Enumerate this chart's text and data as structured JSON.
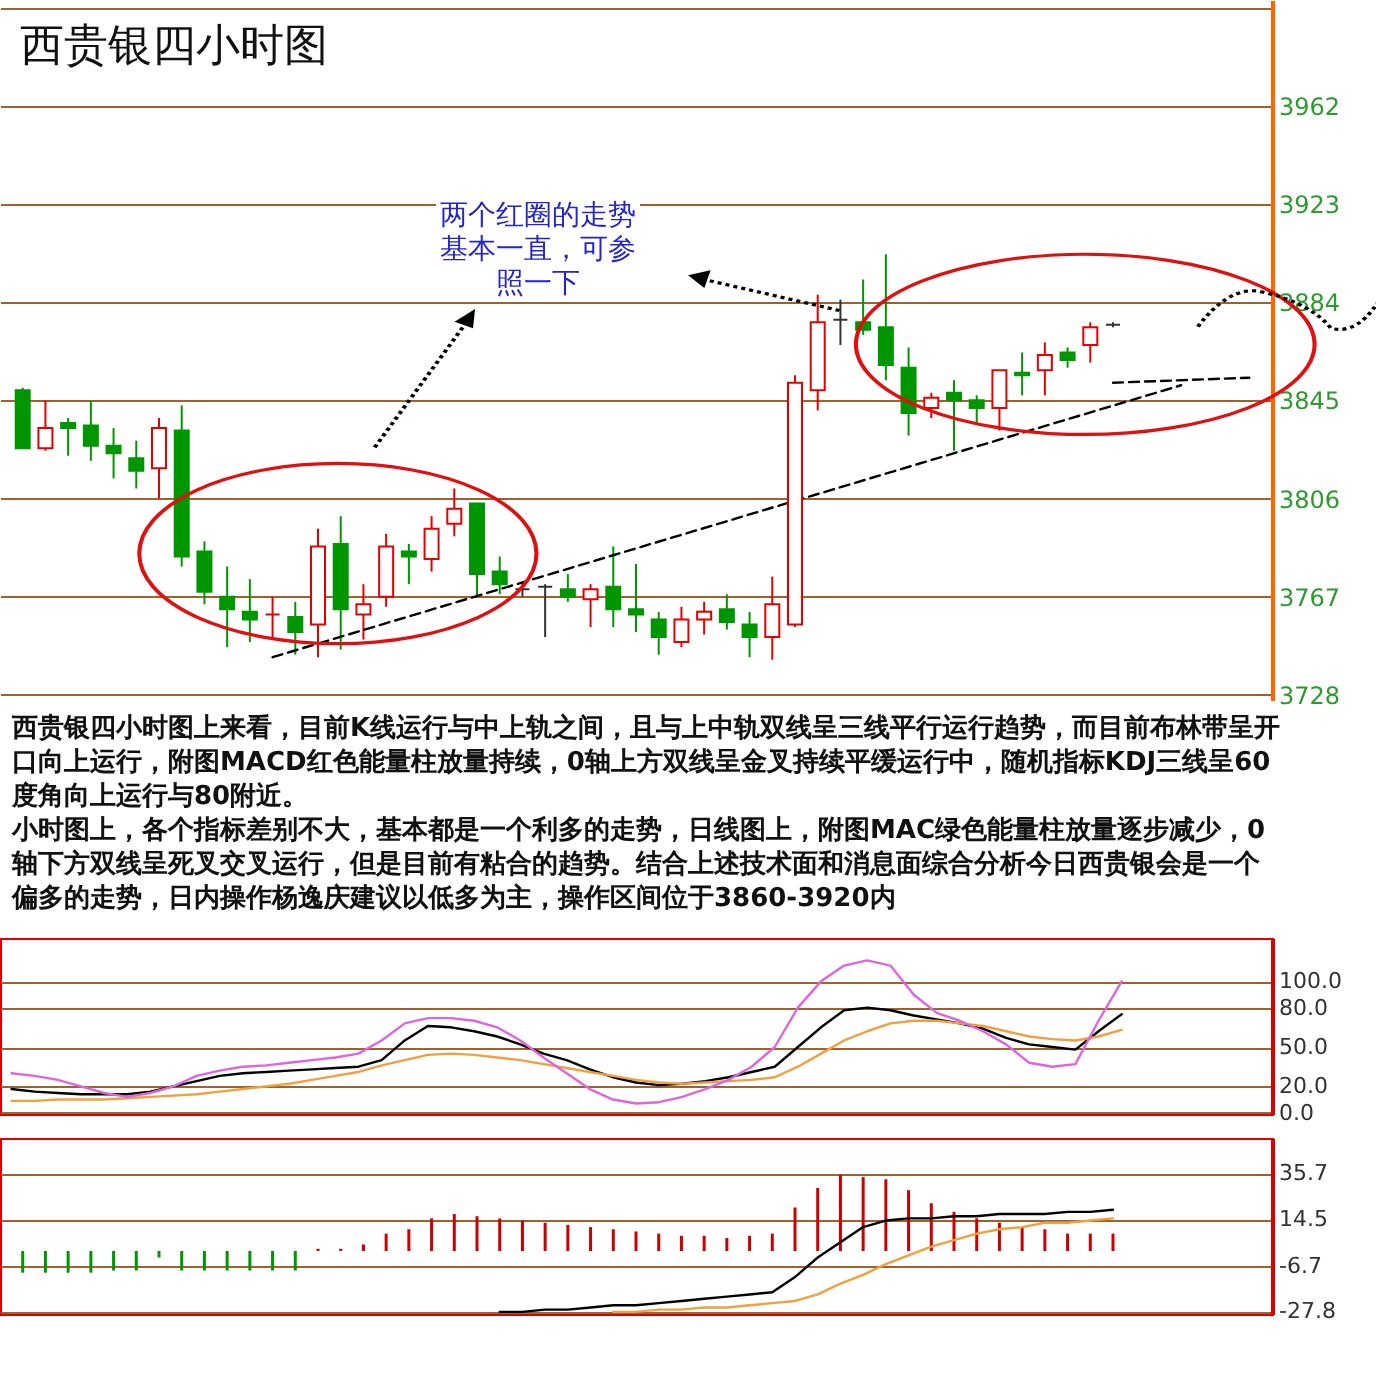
{
  "chart_data": [
    {
      "type": "candlestick",
      "title": "西贵银四小时图",
      "annotations": [
        "两个红圈的走势基本一直，可参照一下",
        "西贵银四小时图上来看，目前K线运行与中上轨之间，且与上中轨双线呈三线平行运行趋势，而目前布林带呈开口向上运行，附图MACD红色能量柱放量持续，0轴上方双线呈金叉持续平缓运行中，随机指标KDJ三线呈60度角向上运行与80附近。",
        "小时图上，各个指标差别不大，基本都是一个利多的走势，日线图上，附图MAC绿色能量柱放量逐步减少，0轴下方双线呈死叉交叉运行，但是目前有粘合的趋势。结合上述技术面和消息面综合分析今日西贵银会是一个偏多的走势，日内操作杨逸庆建议以低多为主，操作区间位于3860-3920内"
      ],
      "categories": [
        null,
        null,
        null,
        null,
        null,
        null,
        null,
        null,
        null,
        null,
        null,
        null,
        null,
        null,
        null,
        null,
        null,
        null,
        null,
        null,
        null,
        null,
        null,
        null,
        null,
        null,
        null,
        null,
        null,
        null,
        null,
        null,
        null,
        null,
        null,
        null,
        null,
        null,
        null,
        null,
        null,
        null,
        null,
        null,
        null,
        null,
        null,
        null,
        null,
        null,
        null,
        null,
        null,
        null,
        null
      ],
      "ohlc": [
        [
          3849,
          3850,
          3826,
          3826
        ],
        [
          3826,
          3845,
          3825,
          3834
        ],
        [
          3836,
          3838,
          3823,
          3834
        ],
        [
          3835,
          3845,
          3821,
          3827
        ],
        [
          3827,
          3834,
          3814,
          3824
        ],
        [
          3822,
          3829,
          3810,
          3817
        ],
        [
          3818,
          3838,
          3806,
          3834
        ],
        [
          3833,
          3843,
          3779,
          3783
        ],
        [
          3785,
          3789,
          3764,
          3769
        ],
        [
          3767,
          3779,
          3747,
          3762
        ],
        [
          3761,
          3774,
          3749,
          3758
        ],
        [
          3760,
          3767,
          3750,
          3760
        ],
        [
          3759,
          3765,
          3744,
          3753
        ],
        [
          3756,
          3794,
          3743,
          3787
        ],
        [
          3788,
          3799,
          3746,
          3762
        ],
        [
          3760,
          3772,
          3750,
          3764
        ],
        [
          3767,
          3792,
          3763,
          3787
        ],
        [
          3785,
          3788,
          3772,
          3783
        ],
        [
          3782,
          3799,
          3777,
          3794
        ],
        [
          3796,
          3810,
          3791,
          3802
        ],
        [
          3804,
          3804,
          3767,
          3776
        ],
        [
          3777,
          3783,
          3768,
          3772
        ],
        [
          3770,
          3773,
          3767,
          3770
        ],
        [
          3771,
          3772,
          3751,
          3771
        ],
        [
          3770,
          3776,
          3765,
          3767
        ],
        [
          3766,
          3772,
          3755,
          3770
        ],
        [
          3771,
          3787,
          3755,
          3762
        ],
        [
          3762,
          3780,
          3753,
          3760
        ],
        [
          3758,
          3761,
          3744,
          3751
        ],
        [
          3749,
          3763,
          3747,
          3758
        ],
        [
          3758,
          3765,
          3752,
          3761
        ],
        [
          3762,
          3768,
          3754,
          3757
        ],
        [
          3756,
          3761,
          3743,
          3751
        ],
        [
          3751,
          3775,
          3742,
          3764
        ],
        [
          3756,
          3855,
          3755,
          3852
        ],
        [
          3849,
          3887,
          3841,
          3876
        ],
        [
          3877,
          3885,
          3867,
          3877
        ],
        [
          3876,
          3893,
          3871,
          3873
        ],
        [
          3874,
          3903,
          3853,
          3859
        ],
        [
          3858,
          3866,
          3831,
          3840
        ],
        [
          3842,
          3848,
          3838,
          3846
        ],
        [
          3848,
          3853,
          3825,
          3845
        ],
        [
          3845,
          3847,
          3836,
          3842
        ],
        [
          3842,
          3857,
          3833,
          3857
        ],
        [
          3856,
          3864,
          3847,
          3855
        ],
        [
          3857,
          3868,
          3847,
          3863
        ],
        [
          3864,
          3866,
          3858,
          3861
        ],
        [
          3867,
          3876,
          3860,
          3874
        ],
        [
          3875,
          3876,
          3874,
          3875
        ],
        null,
        null,
        null,
        null,
        null,
        null
      ],
      "colors": [
        "#009600",
        "#e60000",
        "#009600",
        "#009600",
        "#009600",
        "#009600",
        "#e60000",
        "#009600",
        "#009600",
        "#009600",
        "#009600",
        "#e60000",
        "#009600",
        "#e60000",
        "#009600",
        "#e60000",
        "#e60000",
        "#009600",
        "#e60000",
        "#e60000",
        "#009600",
        "#009600",
        "#333333",
        "#333333",
        "#009600",
        "#e60000",
        "#009600",
        "#009600",
        "#009600",
        "#e60000",
        "#e60000",
        "#009600",
        "#009600",
        "#e60000",
        "#e60000",
        "#e60000",
        "#333333",
        "#009600",
        "#009600",
        "#009600",
        "#e60000",
        "#009600",
        "#009600",
        "#e60000",
        "#009600",
        "#e60000",
        "#009600",
        "#e60000",
        "#333333",
        null,
        null,
        null,
        null,
        null,
        null
      ],
      "series": [
        {
          "type": "line",
          "color": "#000000",
          "line_style": "dashed",
          "values": [
            null,
            null,
            null,
            null,
            null,
            null,
            null,
            null,
            null,
            null,
            null,
            3743,
            null,
            null,
            null,
            null,
            null,
            null,
            null,
            null,
            null,
            null,
            null,
            null,
            null,
            null,
            null,
            null,
            null,
            null,
            null,
            null,
            null,
            null,
            null,
            null,
            null,
            null,
            null,
            null,
            null,
            null,
            null,
            null,
            null,
            null,
            null,
            null,
            null,
            null,
            null,
            3851,
            null,
            null,
            null
          ]
        },
        {
          "type": "line",
          "color": "#000000",
          "line_style": "dashed",
          "values": [
            null,
            null,
            null,
            null,
            null,
            null,
            null,
            null,
            null,
            null,
            null,
            null,
            null,
            null,
            null,
            null,
            null,
            null,
            null,
            null,
            null,
            null,
            null,
            null,
            null,
            null,
            null,
            null,
            null,
            null,
            null,
            null,
            null,
            null,
            null,
            null,
            null,
            null,
            null,
            null,
            null,
            null,
            null,
            null,
            null,
            null,
            null,
            null,
            3852,
            null,
            null,
            null,
            null,
            null,
            3854
          ]
        }
      ],
      "ylim": [
        3726,
        4004
      ],
      "yticks": [
        3728,
        3767,
        3806,
        3845,
        3884,
        3923,
        3962,
        {
          "value": 4001,
          "label": null
        }
      ],
      "grid": "y",
      "tick_labels": "y"
    },
    {
      "type": "line",
      "categories": [
        null,
        null,
        null,
        null,
        null,
        null,
        null,
        null,
        null,
        null,
        null,
        null,
        null,
        null,
        null,
        null,
        null,
        null,
        null,
        null,
        null,
        null,
        null,
        null,
        null,
        null,
        null,
        null,
        null,
        null,
        null,
        null,
        null,
        null,
        null,
        null,
        null,
        null,
        null,
        null,
        null,
        null,
        null,
        null,
        null,
        null,
        null,
        null,
        null,
        null,
        null,
        null,
        null,
        null,
        null
      ],
      "series": [
        {
          "color": "#000000",
          "values": [
            18,
            16,
            15,
            14,
            14,
            14,
            16,
            20,
            24,
            28,
            30,
            31,
            32,
            33,
            34,
            35,
            40,
            55,
            66,
            65,
            62,
            58,
            52,
            45,
            40,
            33,
            27,
            23,
            21,
            22,
            24,
            27,
            31,
            35,
            50,
            65,
            78,
            80,
            78,
            74,
            71,
            68,
            64,
            57,
            52,
            50,
            48,
            62,
            75,
            null,
            null,
            null,
            null,
            null,
            null
          ]
        },
        {
          "color": "#f0a040",
          "values": [
            9,
            9,
            10,
            10,
            10,
            11,
            12,
            13,
            14,
            16,
            18,
            20,
            22,
            25,
            28,
            31,
            36,
            40,
            44,
            45,
            44,
            42,
            40,
            37,
            34,
            31,
            28,
            25,
            23,
            22,
            23,
            24,
            25,
            27,
            35,
            45,
            55,
            62,
            68,
            70,
            70,
            68,
            66,
            62,
            58,
            56,
            55,
            58,
            63,
            null,
            null,
            null,
            null,
            null,
            null
          ]
        },
        {
          "color": "#dd66dd",
          "values": [
            30,
            28,
            25,
            20,
            15,
            12,
            15,
            20,
            28,
            32,
            35,
            36,
            38,
            40,
            42,
            45,
            55,
            68,
            72,
            72,
            70,
            65,
            55,
            42,
            30,
            18,
            10,
            7,
            8,
            12,
            18,
            25,
            35,
            50,
            80,
            100,
            112,
            116,
            112,
            90,
            76,
            70,
            62,
            52,
            38,
            35,
            37,
            70,
            100,
            null,
            null,
            null,
            null,
            null,
            null
          ]
        }
      ],
      "ylim": [
        -1,
        133
      ],
      "yticks": [
        {
          "value": 0,
          "label": "0.0"
        },
        {
          "value": 20,
          "label": "20.0"
        },
        {
          "value": 50,
          "label": "50.0"
        },
        {
          "value": 80,
          "label": "80.0"
        },
        {
          "value": 100,
          "label": "100.0"
        }
      ],
      "grid": "y",
      "tick_labels": "y"
    },
    {
      "type": "bar",
      "categories": [
        null,
        null,
        null,
        null,
        null,
        null,
        null,
        null,
        null,
        null,
        null,
        null,
        null,
        null,
        null,
        null,
        null,
        null,
        null,
        null,
        null,
        null,
        null,
        null,
        null,
        null,
        null,
        null,
        null,
        null,
        null,
        null,
        null,
        null,
        null,
        null,
        null,
        null,
        null,
        null,
        null,
        null,
        null,
        null,
        null,
        null,
        null,
        null,
        null,
        null,
        null,
        null,
        null,
        null,
        null
      ],
      "series": [
        {
          "type": "bar",
          "values": [
            -10,
            -10,
            -10,
            -10,
            -9,
            -9,
            -3,
            -9,
            -9,
            -9,
            -9,
            -9,
            -9,
            1,
            1,
            3,
            8,
            10,
            15,
            17,
            16,
            15,
            14,
            13,
            12,
            11,
            10,
            9,
            8,
            7,
            7,
            6,
            7,
            8,
            20,
            29,
            35,
            34,
            33,
            28,
            22,
            18,
            15,
            13,
            11,
            10,
            8,
            8,
            8,
            null,
            null,
            null,
            null,
            null,
            null
          ],
          "colors": [
            "#009600",
            "#009600",
            "#009600",
            "#009600",
            "#009600",
            "#009600",
            "#009600",
            "#009600",
            "#009600",
            "#009600",
            "#009600",
            "#009600",
            "#009600",
            "#cc0000",
            "#cc0000",
            "#cc0000",
            "#cc0000",
            "#cc0000",
            "#cc0000",
            "#cc0000",
            "#cc0000",
            "#cc0000",
            "#cc0000",
            "#cc0000",
            "#cc0000",
            "#cc0000",
            "#cc0000",
            "#cc0000",
            "#cc0000",
            "#cc0000",
            "#cc0000",
            "#cc0000",
            "#cc0000",
            "#cc0000",
            "#cc0000",
            "#cc0000",
            "#cc0000",
            "#cc0000",
            "#cc0000",
            "#cc0000",
            "#cc0000",
            "#cc0000",
            "#cc0000",
            "#cc0000",
            "#cc0000",
            "#cc0000",
            "#cc0000",
            "#cc0000",
            "#cc0000",
            null,
            null,
            null,
            null,
            null,
            null
          ]
        },
        {
          "type": "line",
          "color": "#000000",
          "values": [
            null,
            null,
            null,
            null,
            null,
            null,
            null,
            null,
            null,
            null,
            null,
            null,
            null,
            null,
            null,
            null,
            null,
            null,
            null,
            null,
            null,
            -28,
            -28,
            -27,
            -27,
            -26,
            -25,
            -25,
            -24,
            -23,
            -22,
            -21,
            -20,
            -19,
            -12,
            -3,
            4,
            11,
            14,
            15,
            15,
            16,
            16,
            17,
            17,
            17,
            18,
            18,
            19,
            null,
            null,
            null,
            null,
            null,
            null
          ]
        },
        {
          "type": "line",
          "color": "#f0a040",
          "values": [
            null,
            null,
            null,
            null,
            null,
            null,
            null,
            null,
            null,
            null,
            null,
            null,
            null,
            null,
            null,
            null,
            null,
            null,
            null,
            null,
            null,
            null,
            null,
            null,
            null,
            null,
            -28,
            -28,
            -27,
            -27,
            -26,
            -26,
            -25,
            -24,
            -23,
            -20,
            -15,
            -11,
            -6,
            -2,
            2,
            5,
            8,
            10,
            11,
            13,
            13,
            14,
            15,
            null,
            null,
            null,
            null,
            null,
            null
          ]
        }
      ],
      "ylim": [
        -29,
        52
      ],
      "yticks": [
        35.7,
        14.5,
        -6.7,
        -27.8
      ],
      "grid": "y",
      "tick_labels": "y"
    }
  ]
}
